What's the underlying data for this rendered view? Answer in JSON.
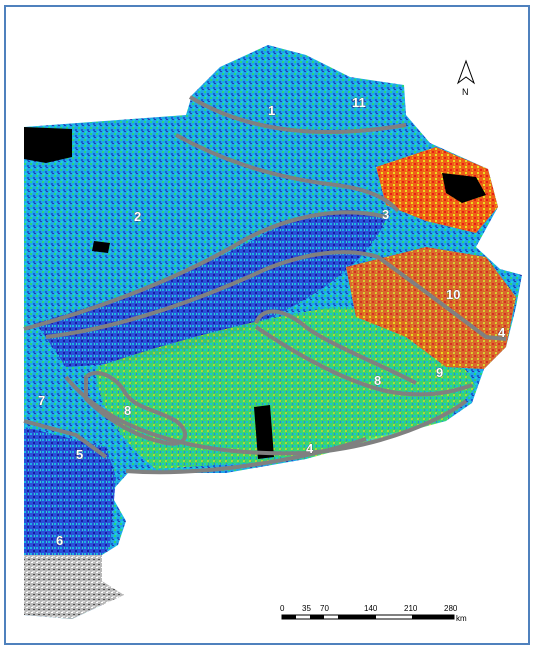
{
  "map": {
    "zone_labels": [
      "1",
      "11",
      "2",
      "3",
      "10",
      "4",
      "9",
      "8",
      "7",
      "8",
      "5",
      "4",
      "6"
    ],
    "north_arrow": {
      "letter": "N"
    },
    "scale_bar": {
      "ticks": [
        "0",
        "35",
        "70",
        "140",
        "210",
        "280"
      ],
      "unit": "km"
    },
    "legend_colors": {
      "very_low": "#1a1aa8",
      "low": "#1e6ee8",
      "mid_low": "#18c8e0",
      "mid": "#2fd86c",
      "mid_high": "#d8e41c",
      "high": "#e8231c",
      "no_data": "#000000",
      "zone_outline": "#808080",
      "frame": "#4f81bd"
    }
  }
}
